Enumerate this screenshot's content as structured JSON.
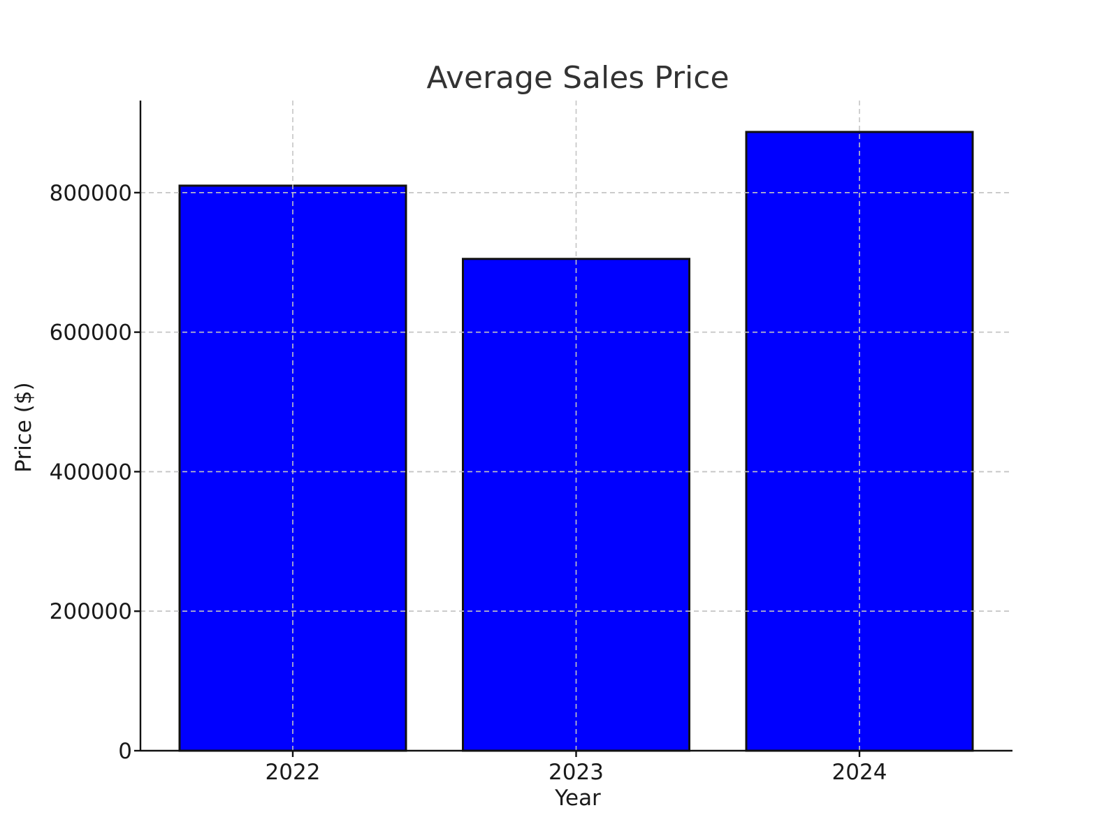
{
  "chart_data": {
    "type": "bar",
    "title": "Average Sales Price",
    "xlabel": "Year",
    "ylabel": "Price ($)",
    "categories": [
      "2022",
      "2023",
      "2024"
    ],
    "values": [
      810000,
      705000,
      887000
    ],
    "ylim": [
      0,
      932000
    ],
    "yticks": [
      0,
      200000,
      400000,
      600000,
      800000
    ],
    "ytick_labels": [
      "0",
      "200000",
      "400000",
      "600000",
      "800000"
    ],
    "grid": true,
    "legend": "none",
    "bar_color": "#0000ff",
    "edge_color": "#111111"
  }
}
